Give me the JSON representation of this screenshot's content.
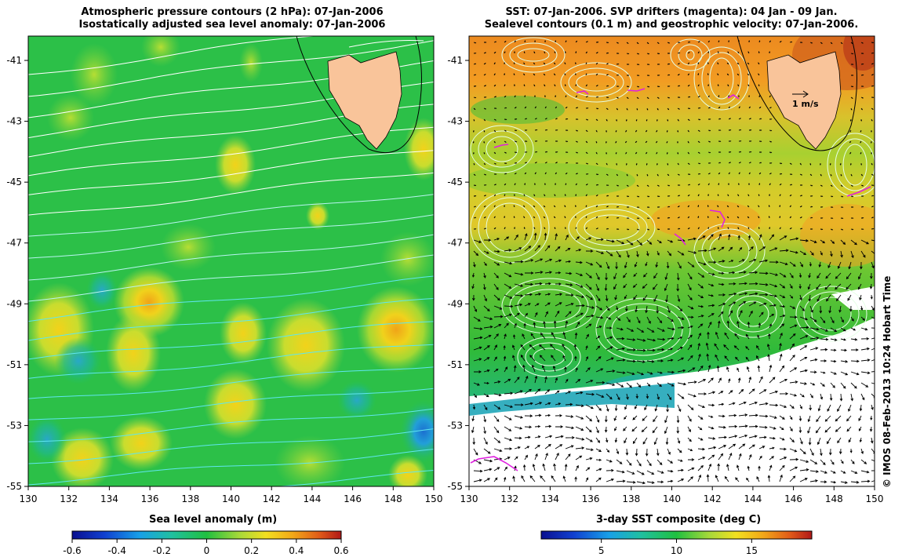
{
  "left_panel": {
    "title_line1": "Atmospheric pressure contours (2 hPa): 07-Jan-2006",
    "title_line2": "Isostatically adjusted sea level anomaly: 07-Jan-2006",
    "lat_ticks": [
      "-41",
      "-43",
      "-45",
      "-47",
      "-49",
      "-51",
      "-53",
      "-55"
    ],
    "lon_ticks": [
      "130",
      "132",
      "134",
      "136",
      "138",
      "140",
      "142",
      "144",
      "146",
      "148",
      "150"
    ],
    "colorbar": {
      "label": "Sea level anomaly (m)",
      "ticks": [
        "-0.6",
        "-0.4",
        "-0.2",
        "0",
        "0.2",
        "0.4",
        "0.6"
      ],
      "range": [
        -0.6,
        0.6
      ]
    }
  },
  "right_panel": {
    "title_line1": "SST: 07-Jan-2006. SVP drifters (magenta): 04 Jan - 09 Jan.",
    "title_line2": "Sealevel contours (0.1 m) and geostrophic velocity: 07-Jan-2006.",
    "scale_label": "1 m/s",
    "lat_ticks": [
      "-41",
      "-43",
      "-45",
      "-47",
      "-49",
      "-51",
      "-53",
      "-55"
    ],
    "lon_ticks": [
      "130",
      "132",
      "134",
      "136",
      "138",
      "140",
      "142",
      "144",
      "146",
      "148",
      "150"
    ],
    "colorbar": {
      "label": "3-day SST composite (deg C)",
      "ticks": [
        "5",
        "10",
        "15"
      ],
      "range": [
        1,
        19
      ]
    }
  },
  "credit": "© IMOS 08-Feb-2013 10:24 Hobart Time",
  "colors": {
    "land": "#f9c49a",
    "slp_base": "#22c04a",
    "sst_warm": "#f29a1e",
    "sst_mid": "#3fbe2e",
    "sst_cool": "#27b6a8",
    "drifters": "#e020e0"
  }
}
